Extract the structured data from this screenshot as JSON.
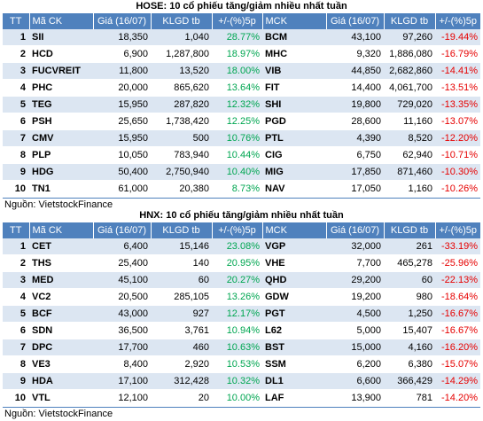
{
  "hose": {
    "title": "HOSE: 10 cổ phiếu tăng/giảm nhiều nhất tuần",
    "headers": [
      "TT",
      "Mã CK",
      "Giá (16/07)",
      "KLGD tb",
      "+/-(%)5p",
      "MCK",
      "Giá (16/07)",
      "KLGD tb",
      "+/-(%)5p"
    ],
    "rows": [
      {
        "tt": "1",
        "code": "SII",
        "price": "18,350",
        "vol": "1,040",
        "chg": "28.77%",
        "code2": "BCM",
        "price2": "43,100",
        "vol2": "97,260",
        "chg2": "-19.44%"
      },
      {
        "tt": "2",
        "code": "HCD",
        "price": "6,900",
        "vol": "1,287,800",
        "chg": "18.97%",
        "code2": "MHC",
        "price2": "9,320",
        "vol2": "1,886,080",
        "chg2": "-16.79%"
      },
      {
        "tt": "3",
        "code": "FUCVREIT",
        "price": "11,800",
        "vol": "13,520",
        "chg": "18.00%",
        "code2": "VIB",
        "price2": "44,850",
        "vol2": "2,682,860",
        "chg2": "-14.41%"
      },
      {
        "tt": "4",
        "code": "PHC",
        "price": "20,000",
        "vol": "865,620",
        "chg": "13.64%",
        "code2": "FIT",
        "price2": "14,400",
        "vol2": "4,061,700",
        "chg2": "-13.51%"
      },
      {
        "tt": "5",
        "code": "TEG",
        "price": "15,950",
        "vol": "287,820",
        "chg": "12.32%",
        "code2": "SHI",
        "price2": "19,800",
        "vol2": "729,020",
        "chg2": "-13.35%"
      },
      {
        "tt": "6",
        "code": "PSH",
        "price": "25,650",
        "vol": "1,738,420",
        "chg": "12.25%",
        "code2": "PGD",
        "price2": "28,600",
        "vol2": "11,160",
        "chg2": "-13.07%"
      },
      {
        "tt": "7",
        "code": "CMV",
        "price": "15,950",
        "vol": "500",
        "chg": "10.76%",
        "code2": "PTL",
        "price2": "4,390",
        "vol2": "8,520",
        "chg2": "-12.20%"
      },
      {
        "tt": "8",
        "code": "PLP",
        "price": "10,050",
        "vol": "783,940",
        "chg": "10.44%",
        "code2": "CIG",
        "price2": "6,750",
        "vol2": "62,940",
        "chg2": "-10.71%"
      },
      {
        "tt": "9",
        "code": "HDG",
        "price": "50,400",
        "vol": "2,750,940",
        "chg": "10.40%",
        "code2": "MIG",
        "price2": "17,850",
        "vol2": "871,460",
        "chg2": "-10.30%"
      },
      {
        "tt": "10",
        "code": "TN1",
        "price": "61,000",
        "vol": "20,380",
        "chg": "8.73%",
        "code2": "NAV",
        "price2": "17,050",
        "vol2": "1,160",
        "chg2": "-10.26%"
      }
    ],
    "source": "Nguồn: VietstockFinance"
  },
  "hnx": {
    "title": "HNX: 10 cổ phiếu tăng/giảm nhiều nhất tuần",
    "headers": [
      "TT",
      "Mã CK",
      "Giá (16/07)",
      "KLGD tb",
      "+/-(%)5p",
      "MCK",
      "Giá (16/07)",
      "KLGD tb",
      "+/-(%)5p"
    ],
    "rows": [
      {
        "tt": "1",
        "code": "CET",
        "price": "6,400",
        "vol": "15,146",
        "chg": "23.08%",
        "code2": "VGP",
        "price2": "32,000",
        "vol2": "261",
        "chg2": "-33.19%"
      },
      {
        "tt": "2",
        "code": "THS",
        "price": "25,400",
        "vol": "140",
        "chg": "20.95%",
        "code2": "VHE",
        "price2": "7,700",
        "vol2": "465,278",
        "chg2": "-25.96%"
      },
      {
        "tt": "3",
        "code": "MED",
        "price": "45,100",
        "vol": "60",
        "chg": "20.27%",
        "code2": "QHD",
        "price2": "29,200",
        "vol2": "60",
        "chg2": "-22.13%"
      },
      {
        "tt": "4",
        "code": "VC2",
        "price": "20,500",
        "vol": "285,105",
        "chg": "13.26%",
        "code2": "GDW",
        "price2": "19,200",
        "vol2": "980",
        "chg2": "-18.64%"
      },
      {
        "tt": "5",
        "code": "BCF",
        "price": "43,000",
        "vol": "927",
        "chg": "12.17%",
        "code2": "PGT",
        "price2": "4,500",
        "vol2": "1,250",
        "chg2": "-16.67%"
      },
      {
        "tt": "6",
        "code": "SDN",
        "price": "36,500",
        "vol": "3,761",
        "chg": "10.94%",
        "code2": "L62",
        "price2": "5,000",
        "vol2": "15,407",
        "chg2": "-16.67%"
      },
      {
        "tt": "7",
        "code": "DPC",
        "price": "17,700",
        "vol": "460",
        "chg": "10.63%",
        "code2": "BST",
        "price2": "15,000",
        "vol2": "4,160",
        "chg2": "-16.20%"
      },
      {
        "tt": "8",
        "code": "VE3",
        "price": "8,400",
        "vol": "2,920",
        "chg": "10.53%",
        "code2": "SSM",
        "price2": "6,200",
        "vol2": "6,380",
        "chg2": "-15.07%"
      },
      {
        "tt": "9",
        "code": "HDA",
        "price": "17,100",
        "vol": "312,428",
        "chg": "10.32%",
        "code2": "DL1",
        "price2": "6,600",
        "vol2": "366,429",
        "chg2": "-14.29%"
      },
      {
        "tt": "10",
        "code": "VTL",
        "price": "12,100",
        "vol": "20",
        "chg": "10.00%",
        "code2": "LAF",
        "price2": "13,900",
        "vol2": "781",
        "chg2": "-14.20%"
      }
    ],
    "source": "Nguồn: VietstockFinance"
  }
}
